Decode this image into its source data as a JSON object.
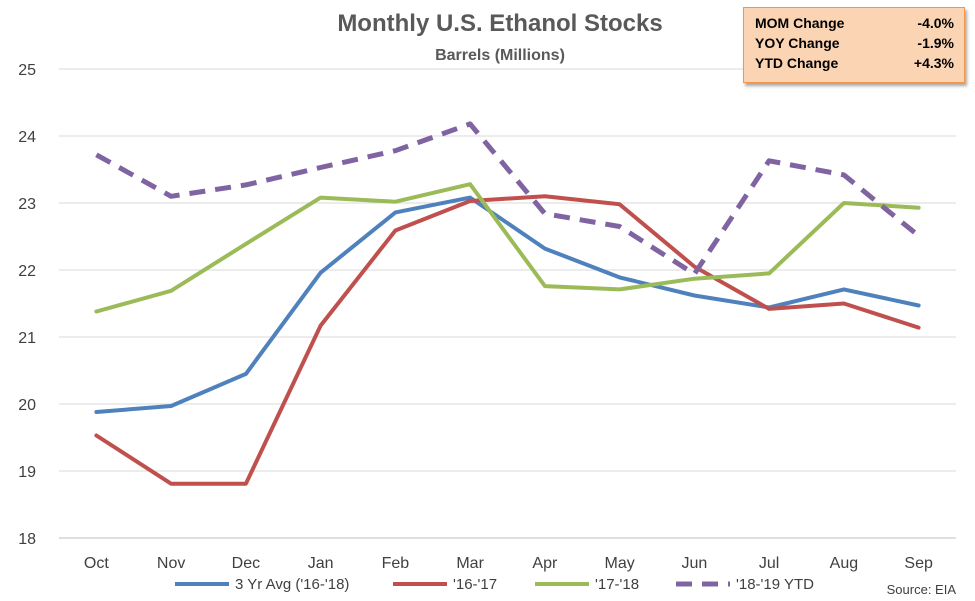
{
  "stats_box": {
    "rows": [
      {
        "label": "MOM Change",
        "value": "-4.0%"
      },
      {
        "label": "YOY Change",
        "value": "-1.9%"
      },
      {
        "label": "YTD Change",
        "value": "+4.3%"
      }
    ],
    "colors": {
      "background": "#fbd4b4",
      "border": "#f79646"
    }
  },
  "source": "Source: EIA",
  "chart_data": {
    "type": "line",
    "title": "Monthly U.S. Ethanol Stocks",
    "subtitle": "Barrels (Millions)",
    "xlabel": "",
    "ylabel": "",
    "categories": [
      "Oct",
      "Nov",
      "Dec",
      "Jan",
      "Feb",
      "Mar",
      "Apr",
      "May",
      "Jun",
      "Jul",
      "Aug",
      "Sep"
    ],
    "ylim": [
      18,
      25
    ],
    "yticks": [
      "18",
      "19",
      "20",
      "21",
      "22",
      "23",
      "24",
      "25"
    ],
    "grid": true,
    "legend_position": "bottom",
    "series": [
      {
        "name": "3 Yr Avg ('16-'18)",
        "color": "#4f81bd",
        "dashed": false,
        "values": [
          19.88,
          19.97,
          20.45,
          21.96,
          22.86,
          23.08,
          22.32,
          21.89,
          21.62,
          21.44,
          21.71,
          21.47
        ]
      },
      {
        "name": "'16-'17",
        "color": "#c0504d",
        "dashed": false,
        "values": [
          19.53,
          18.81,
          18.81,
          21.17,
          22.59,
          23.03,
          23.1,
          22.98,
          22.05,
          21.42,
          21.5,
          21.14
        ]
      },
      {
        "name": "'17-'18",
        "color": "#9bbb59",
        "dashed": false,
        "values": [
          21.38,
          21.69,
          22.39,
          23.08,
          23.02,
          23.28,
          21.76,
          21.71,
          21.87,
          21.95,
          23.0,
          22.93
        ]
      },
      {
        "name": "'18-'19 YTD",
        "color": "#8064a2",
        "dashed": true,
        "values": [
          23.72,
          23.1,
          23.27,
          23.53,
          23.78,
          24.18,
          22.84,
          22.65,
          21.94,
          23.63,
          23.42,
          22.51
        ]
      }
    ]
  }
}
